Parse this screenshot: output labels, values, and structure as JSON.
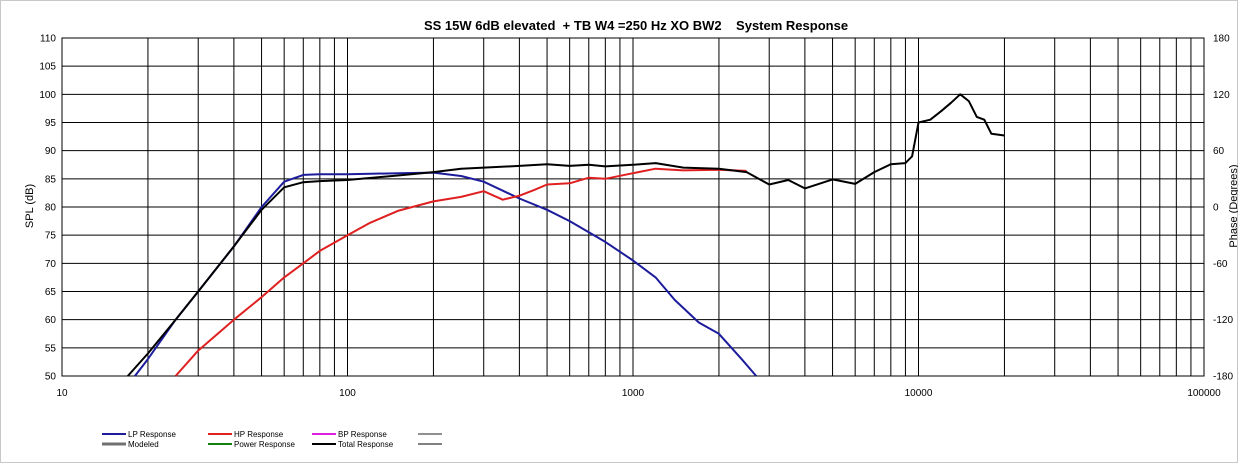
{
  "chart_data": {
    "type": "line",
    "title": "SS 15W 6dB elevated  + TB W4 =250 Hz XO BW2    System Response",
    "xlabel": "",
    "ylabel": "SPL (dB)",
    "y2label": "Phase (Degrees)",
    "xscale": "log",
    "xlim": [
      10,
      100000
    ],
    "ylim": [
      50,
      110
    ],
    "y2lim": [
      -180,
      180
    ],
    "grid": true,
    "x_ticks": [
      "10",
      "100",
      "1000",
      "10000",
      "100000"
    ],
    "y_ticks": [
      "50",
      "55",
      "60",
      "65",
      "70",
      "75",
      "80",
      "85",
      "90",
      "95",
      "100",
      "105",
      "110"
    ],
    "y2_ticks": [
      "-180",
      "-120",
      "-60",
      "0",
      "60",
      "120",
      "180"
    ],
    "legend_position": "bottom-left",
    "legend": [
      {
        "label": "LP Response",
        "color": "#1c1c9c"
      },
      {
        "label": "HP Response",
        "color": "#e02020"
      },
      {
        "label": "BP Response",
        "color": "#e020e0"
      },
      {
        "label": "",
        "color": "#909090"
      },
      {
        "label": "Modeled",
        "color": "#707070"
      },
      {
        "label": "Power Response",
        "color": "#108010"
      },
      {
        "label": "Total Response",
        "color": "#000000"
      },
      {
        "label": "",
        "color": "#000000"
      }
    ],
    "series": [
      {
        "name": "LP Response",
        "color": "#1c1c9c",
        "x": [
          18,
          20,
          25,
          30,
          40,
          50,
          60,
          70,
          80,
          100,
          150,
          200,
          250,
          300,
          400,
          500,
          600,
          700,
          800,
          1000,
          1200,
          1400,
          1700,
          2000,
          2400,
          2700
        ],
        "y": [
          50,
          53,
          60,
          65,
          73,
          80,
          84.5,
          85.7,
          85.8,
          85.8,
          86,
          86.1,
          85.5,
          84.5,
          81.5,
          79.5,
          77.5,
          75.5,
          73.8,
          70.5,
          67.5,
          63.5,
          59.5,
          57.5,
          53,
          50
        ]
      },
      {
        "name": "HP Response",
        "color": "#e02020",
        "x": [
          25,
          30,
          40,
          50,
          60,
          70,
          80,
          100,
          120,
          150,
          200,
          250,
          300,
          350,
          400,
          450,
          500,
          600,
          700,
          800,
          1000,
          1200,
          1500,
          2000,
          2500
        ],
        "y": [
          50,
          54.5,
          60,
          64,
          67.5,
          70,
          72.2,
          75,
          77.2,
          79.3,
          81,
          81.8,
          82.8,
          81.3,
          82,
          83,
          84,
          84.2,
          85.2,
          85,
          86,
          86.8,
          86.5,
          86.6,
          86.4
        ]
      },
      {
        "name": "Total Response",
        "color": "#000000",
        "x": [
          17,
          20,
          25,
          30,
          40,
          50,
          60,
          70,
          80,
          100,
          150,
          200,
          250,
          300,
          400,
          500,
          600,
          700,
          800,
          1000,
          1200,
          1500,
          2000,
          2500,
          3000,
          3500,
          4000,
          5000,
          6000,
          7000,
          8000,
          9000,
          9500,
          10000,
          11000,
          12000,
          13000,
          14000,
          15000,
          16000,
          17000,
          18000,
          20000
        ],
        "y": [
          50,
          54,
          60,
          65,
          73,
          79.5,
          83.5,
          84.4,
          84.6,
          84.8,
          85.6,
          86.2,
          86.8,
          87,
          87.3,
          87.6,
          87.3,
          87.5,
          87.2,
          87.5,
          87.8,
          87,
          86.8,
          86.2,
          84,
          84.8,
          83.3,
          84.9,
          84.1,
          86.2,
          87.6,
          87.8,
          89,
          95,
          95.5,
          97,
          98.5,
          100,
          98.8,
          96,
          95.5,
          93,
          92.7
        ]
      }
    ]
  }
}
